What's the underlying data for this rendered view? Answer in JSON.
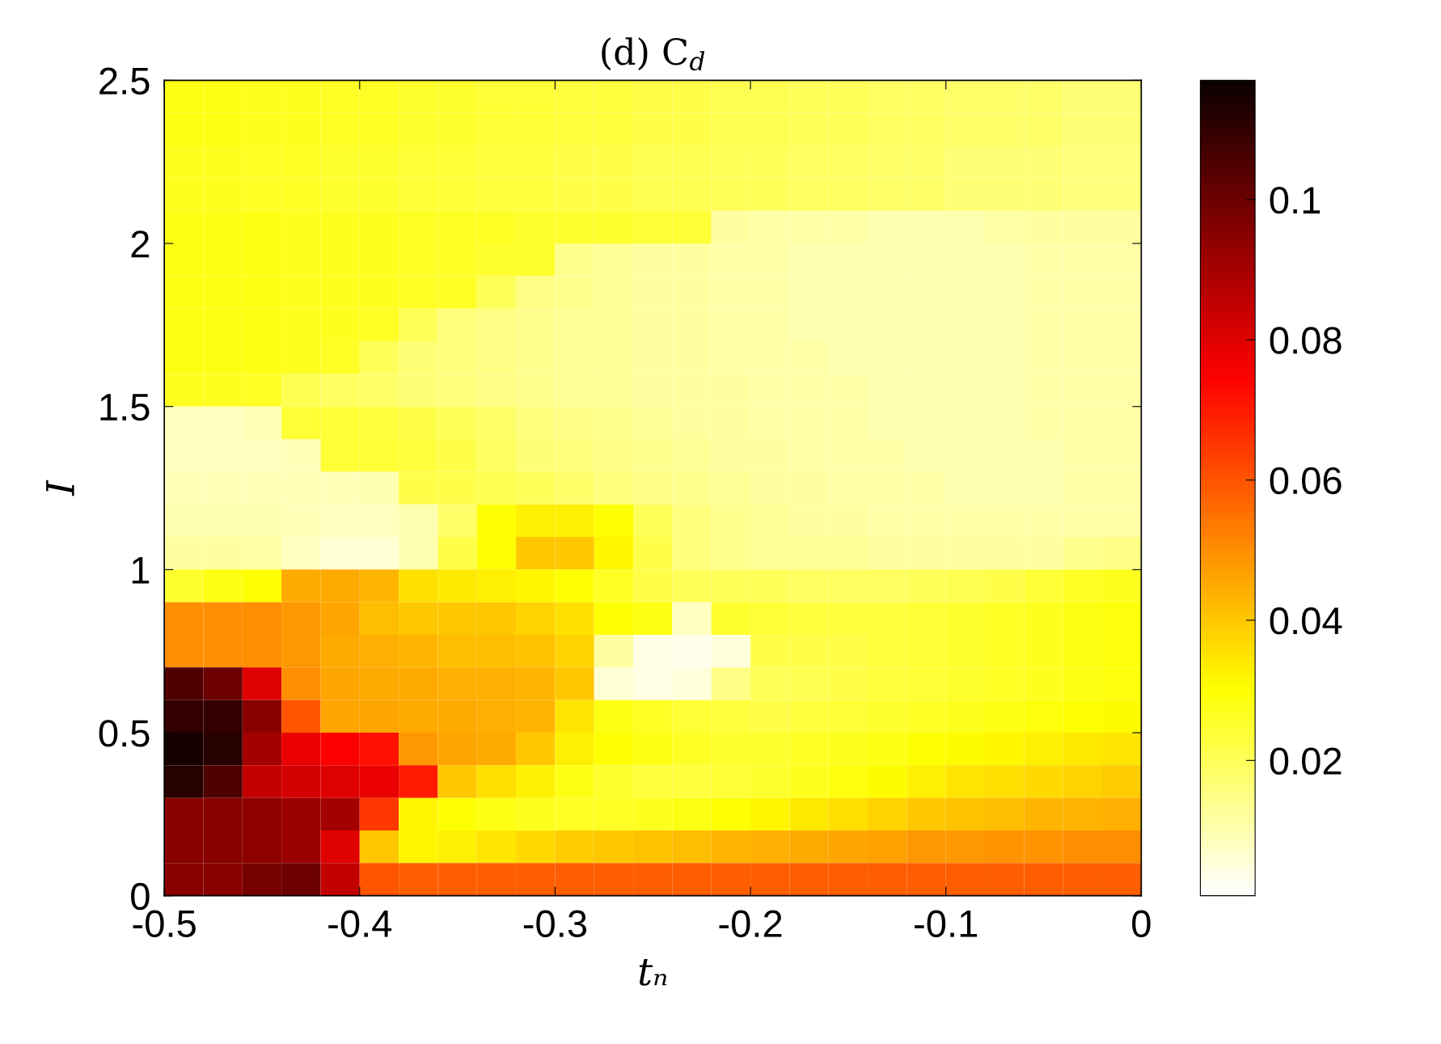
{
  "chart_data": {
    "type": "heatmap",
    "title": "(d) C$_{d}$",
    "xlabel": "tₙ",
    "ylabel": "I",
    "x": [
      -0.49,
      -0.47,
      -0.45,
      -0.43,
      -0.41,
      -0.39,
      -0.37,
      -0.35,
      -0.33,
      -0.31,
      -0.29,
      -0.27,
      -0.25,
      -0.23,
      -0.21,
      -0.19,
      -0.17,
      -0.15,
      -0.13,
      -0.11,
      -0.09,
      -0.07,
      -0.05,
      -0.03,
      -0.01
    ],
    "y": [
      2.45,
      2.35,
      2.25,
      2.15,
      2.05,
      1.95,
      1.85,
      1.75,
      1.65,
      1.55,
      1.45,
      1.35,
      1.25,
      1.15,
      1.05,
      0.95,
      0.85,
      0.75,
      0.65,
      0.55,
      0.45,
      0.35,
      0.25,
      0.15,
      0.05
    ],
    "xlim": [
      -0.5,
      0
    ],
    "xticks": [
      -0.5,
      -0.4,
      -0.3,
      -0.2,
      -0.1,
      0
    ],
    "ylim": [
      0,
      2.5
    ],
    "yticks": [
      0,
      0.5,
      1,
      1.5,
      2,
      2.5
    ],
    "clim": [
      0.0007,
      0.117
    ],
    "cticks": [
      0.02,
      0.04,
      0.06,
      0.08,
      0.1
    ],
    "cells": [
      [
        0.028,
        0.028,
        0.027,
        0.027,
        0.026,
        0.026,
        0.025,
        0.025,
        0.024,
        0.024,
        0.023,
        0.023,
        0.022,
        0.022,
        0.021,
        0.021,
        0.02,
        0.02,
        0.019,
        0.019,
        0.018,
        0.018,
        0.018,
        0.017,
        0.017
      ],
      [
        0.028,
        0.028,
        0.027,
        0.027,
        0.026,
        0.026,
        0.025,
        0.025,
        0.024,
        0.024,
        0.023,
        0.023,
        0.022,
        0.022,
        0.021,
        0.021,
        0.02,
        0.02,
        0.019,
        0.019,
        0.018,
        0.018,
        0.018,
        0.017,
        0.017
      ],
      [
        0.027,
        0.027,
        0.026,
        0.026,
        0.025,
        0.025,
        0.024,
        0.024,
        0.023,
        0.023,
        0.022,
        0.022,
        0.021,
        0.021,
        0.02,
        0.02,
        0.019,
        0.019,
        0.018,
        0.018,
        0.017,
        0.017,
        0.017,
        0.016,
        0.016
      ],
      [
        0.027,
        0.027,
        0.026,
        0.026,
        0.025,
        0.025,
        0.024,
        0.024,
        0.023,
        0.023,
        0.022,
        0.022,
        0.021,
        0.021,
        0.02,
        0.02,
        0.019,
        0.019,
        0.018,
        0.018,
        0.017,
        0.017,
        0.017,
        0.016,
        0.016
      ],
      [
        0.028,
        0.028,
        0.028,
        0.027,
        0.027,
        0.027,
        0.026,
        0.026,
        0.026,
        0.025,
        0.025,
        0.025,
        0.024,
        0.024,
        0.012,
        0.011,
        0.011,
        0.011,
        0.01,
        0.01,
        0.01,
        0.011,
        0.012,
        0.012,
        0.012
      ],
      [
        0.028,
        0.028,
        0.028,
        0.027,
        0.027,
        0.027,
        0.026,
        0.026,
        0.025,
        0.025,
        0.014,
        0.013,
        0.012,
        0.012,
        0.011,
        0.011,
        0.01,
        0.01,
        0.01,
        0.01,
        0.01,
        0.01,
        0.011,
        0.011,
        0.011
      ],
      [
        0.028,
        0.028,
        0.028,
        0.027,
        0.027,
        0.027,
        0.026,
        0.026,
        0.02,
        0.015,
        0.014,
        0.013,
        0.012,
        0.012,
        0.011,
        0.011,
        0.01,
        0.01,
        0.01,
        0.01,
        0.01,
        0.01,
        0.011,
        0.011,
        0.011
      ],
      [
        0.028,
        0.028,
        0.028,
        0.027,
        0.027,
        0.026,
        0.02,
        0.016,
        0.015,
        0.014,
        0.013,
        0.013,
        0.012,
        0.012,
        0.011,
        0.011,
        0.01,
        0.01,
        0.01,
        0.01,
        0.01,
        0.01,
        0.011,
        0.011,
        0.011
      ],
      [
        0.028,
        0.028,
        0.028,
        0.027,
        0.026,
        0.02,
        0.017,
        0.016,
        0.015,
        0.014,
        0.013,
        0.013,
        0.012,
        0.012,
        0.011,
        0.011,
        0.011,
        0.01,
        0.01,
        0.01,
        0.01,
        0.01,
        0.011,
        0.011,
        0.011
      ],
      [
        0.027,
        0.027,
        0.026,
        0.021,
        0.019,
        0.018,
        0.017,
        0.016,
        0.015,
        0.014,
        0.013,
        0.013,
        0.012,
        0.012,
        0.012,
        0.011,
        0.011,
        0.011,
        0.01,
        0.01,
        0.01,
        0.01,
        0.011,
        0.011,
        0.011
      ],
      [
        0.008,
        0.008,
        0.009,
        0.024,
        0.024,
        0.023,
        0.022,
        0.02,
        0.018,
        0.016,
        0.015,
        0.014,
        0.013,
        0.012,
        0.012,
        0.011,
        0.011,
        0.011,
        0.01,
        0.01,
        0.01,
        0.01,
        0.011,
        0.011,
        0.011
      ],
      [
        0.008,
        0.008,
        0.008,
        0.009,
        0.024,
        0.024,
        0.023,
        0.022,
        0.019,
        0.017,
        0.016,
        0.015,
        0.014,
        0.013,
        0.012,
        0.012,
        0.011,
        0.011,
        0.011,
        0.01,
        0.01,
        0.01,
        0.01,
        0.011,
        0.011
      ],
      [
        0.009,
        0.009,
        0.009,
        0.009,
        0.009,
        0.01,
        0.022,
        0.022,
        0.021,
        0.02,
        0.018,
        0.016,
        0.015,
        0.014,
        0.013,
        0.012,
        0.012,
        0.011,
        0.011,
        0.011,
        0.01,
        0.01,
        0.01,
        0.011,
        0.011
      ],
      [
        0.01,
        0.01,
        0.01,
        0.009,
        0.008,
        0.008,
        0.01,
        0.018,
        0.03,
        0.033,
        0.033,
        0.03,
        0.02,
        0.016,
        0.014,
        0.013,
        0.012,
        0.012,
        0.011,
        0.011,
        0.011,
        0.011,
        0.011,
        0.011,
        0.011
      ],
      [
        0.012,
        0.012,
        0.011,
        0.008,
        0.006,
        0.006,
        0.01,
        0.022,
        0.03,
        0.04,
        0.04,
        0.032,
        0.022,
        0.016,
        0.014,
        0.013,
        0.013,
        0.013,
        0.012,
        0.012,
        0.012,
        0.012,
        0.012,
        0.014,
        0.015
      ],
      [
        0.025,
        0.028,
        0.03,
        0.045,
        0.045,
        0.043,
        0.036,
        0.034,
        0.033,
        0.032,
        0.03,
        0.026,
        0.022,
        0.02,
        0.02,
        0.02,
        0.019,
        0.019,
        0.019,
        0.02,
        0.021,
        0.022,
        0.024,
        0.026,
        0.027
      ],
      [
        0.05,
        0.05,
        0.05,
        0.048,
        0.046,
        0.042,
        0.04,
        0.04,
        0.04,
        0.038,
        0.036,
        0.03,
        0.028,
        0.008,
        0.025,
        0.024,
        0.023,
        0.023,
        0.023,
        0.024,
        0.025,
        0.026,
        0.027,
        0.028,
        0.029
      ],
      [
        0.05,
        0.05,
        0.05,
        0.048,
        0.045,
        0.044,
        0.043,
        0.042,
        0.042,
        0.041,
        0.038,
        0.012,
        0.004,
        0.003,
        0.005,
        0.022,
        0.022,
        0.022,
        0.023,
        0.024,
        0.025,
        0.026,
        0.027,
        0.028,
        0.029
      ],
      [
        0.105,
        0.1,
        0.08,
        0.05,
        0.046,
        0.045,
        0.045,
        0.044,
        0.044,
        0.043,
        0.04,
        0.006,
        0.004,
        0.005,
        0.015,
        0.02,
        0.021,
        0.022,
        0.023,
        0.024,
        0.025,
        0.026,
        0.027,
        0.028,
        0.029
      ],
      [
        0.11,
        0.11,
        0.095,
        0.06,
        0.046,
        0.046,
        0.045,
        0.045,
        0.044,
        0.043,
        0.035,
        0.028,
        0.026,
        0.024,
        0.023,
        0.022,
        0.023,
        0.024,
        0.025,
        0.026,
        0.027,
        0.028,
        0.029,
        0.03,
        0.031
      ],
      [
        0.115,
        0.112,
        0.09,
        0.078,
        0.075,
        0.072,
        0.048,
        0.046,
        0.045,
        0.04,
        0.033,
        0.03,
        0.028,
        0.026,
        0.025,
        0.025,
        0.026,
        0.027,
        0.028,
        0.03,
        0.031,
        0.032,
        0.033,
        0.034,
        0.035
      ],
      [
        0.112,
        0.105,
        0.085,
        0.082,
        0.08,
        0.078,
        0.07,
        0.04,
        0.036,
        0.033,
        0.028,
        0.025,
        0.023,
        0.023,
        0.024,
        0.025,
        0.027,
        0.029,
        0.031,
        0.033,
        0.035,
        0.036,
        0.037,
        0.038,
        0.039
      ],
      [
        0.095,
        0.095,
        0.094,
        0.092,
        0.09,
        0.065,
        0.032,
        0.03,
        0.028,
        0.027,
        0.026,
        0.026,
        0.027,
        0.028,
        0.03,
        0.032,
        0.034,
        0.036,
        0.038,
        0.04,
        0.041,
        0.042,
        0.043,
        0.043,
        0.044
      ],
      [
        0.095,
        0.095,
        0.094,
        0.092,
        0.08,
        0.04,
        0.032,
        0.033,
        0.035,
        0.037,
        0.039,
        0.04,
        0.041,
        0.042,
        0.043,
        0.044,
        0.045,
        0.046,
        0.047,
        0.048,
        0.048,
        0.049,
        0.049,
        0.05,
        0.05
      ],
      [
        0.095,
        0.095,
        0.098,
        0.1,
        0.085,
        0.06,
        0.058,
        0.058,
        0.058,
        0.058,
        0.058,
        0.058,
        0.058,
        0.058,
        0.058,
        0.058,
        0.058,
        0.058,
        0.058,
        0.058,
        0.058,
        0.058,
        0.058,
        0.058,
        0.058
      ]
    ]
  }
}
